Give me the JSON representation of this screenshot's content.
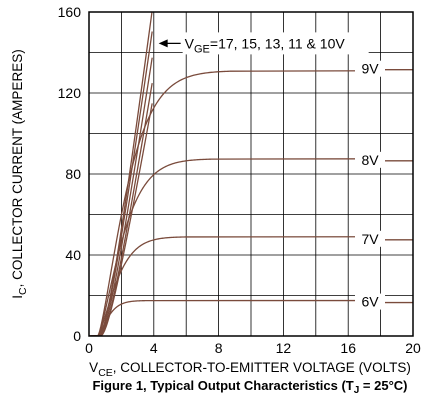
{
  "chart_data": {
    "type": "line",
    "title": "",
    "caption": {
      "prefix": "Figure 1, Typical Output Characteristics (T",
      "sub": "J",
      "suffix": " = 25°C)"
    },
    "xlabel": {
      "main": "V",
      "sub": "CE",
      "rest": ", COLLECTOR-TO-EMITTER VOLTAGE (VOLTS)"
    },
    "ylabel": {
      "main": "I",
      "sub": "C",
      "rest": ", COLLECTOR CURRENT (AMPERES)"
    },
    "xlim": [
      0,
      20
    ],
    "ylim": [
      0,
      160
    ],
    "xticks": [
      0,
      4,
      8,
      12,
      16,
      20
    ],
    "yticks": [
      0,
      40,
      80,
      120,
      160
    ],
    "grid": true,
    "colors": {
      "curve": "#7a4b3c",
      "grid": "#000000",
      "background": "#ffffff"
    },
    "annotation": {
      "prefix": "V",
      "sub": "GE",
      "rest": "=17, 15, 13, 11 & 10V",
      "points_to": [
        4.3,
        145
      ]
    },
    "series": [
      {
        "name": "6V",
        "label_y": 17,
        "sat": 17.5,
        "knee": 2.4
      },
      {
        "name": "7V",
        "label_y": 48,
        "sat": 49,
        "knee": 3.8
      },
      {
        "name": "8V",
        "label_y": 87,
        "sat": 87.5,
        "knee": 4.8
      },
      {
        "name": "9V",
        "label_y": 132,
        "sat": 131,
        "knee": 5.5
      },
      {
        "name": "10V",
        "sat": null,
        "slope": 46,
        "vt": 0.7
      },
      {
        "name": "11V",
        "sat": null,
        "slope": 50,
        "vt": 0.7
      },
      {
        "name": "13V",
        "sat": null,
        "slope": 54,
        "vt": 0.65
      },
      {
        "name": "15V",
        "sat": null,
        "slope": 58,
        "vt": 0.6
      },
      {
        "name": "17V",
        "sat": null,
        "slope": 62,
        "vt": 0.6
      }
    ]
  }
}
